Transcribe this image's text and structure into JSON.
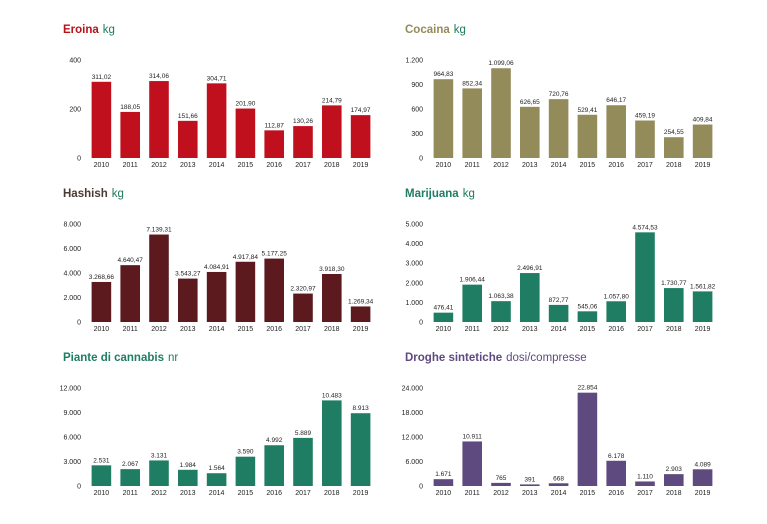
{
  "chart_data": [
    {
      "id": "eroina",
      "type": "bar",
      "title": "Eroina",
      "unit": "kg",
      "color": "#c0101e",
      "title_color": "#b5121b",
      "unit_color": "#1e7a5a",
      "categories": [
        "2010",
        "2011",
        "2012",
        "2013",
        "2014",
        "2015",
        "2016",
        "2017",
        "2018",
        "2019"
      ],
      "values": [
        311.02,
        188.05,
        314.06,
        151.66,
        304.71,
        201.9,
        112.87,
        130.26,
        214.79,
        174.97
      ],
      "value_labels": [
        "311,02",
        "188,05",
        "314,06",
        "151,66",
        "304,71",
        "201,90",
        "112,87",
        "130,26",
        "214,79",
        "174,97"
      ],
      "yticks": [
        0,
        200,
        400
      ],
      "ytick_labels": [
        "0",
        "200",
        "400"
      ],
      "ylim": [
        0,
        400
      ]
    },
    {
      "id": "cocaina",
      "type": "bar",
      "title": "Cocaina",
      "unit": "kg",
      "color": "#948b5a",
      "title_color": "#948b5a",
      "unit_color": "#1e7a5a",
      "categories": [
        "2010",
        "2011",
        "2012",
        "2013",
        "2014",
        "2015",
        "2016",
        "2017",
        "2018",
        "2019"
      ],
      "values": [
        964.83,
        852.34,
        1099.06,
        626.65,
        720.76,
        529.41,
        646.17,
        459.19,
        254.55,
        409.84
      ],
      "value_labels": [
        "964,83",
        "852,34",
        "1.099,06",
        "626,65",
        "720,76",
        "529,41",
        "646,17",
        "459,19",
        "254,55",
        "409,84"
      ],
      "yticks": [
        0,
        300,
        600,
        900,
        1200
      ],
      "ytick_labels": [
        "0",
        "300",
        "600",
        "900",
        "1.200"
      ],
      "ylim": [
        0,
        1200
      ]
    },
    {
      "id": "hashish",
      "type": "bar",
      "title": "Hashish",
      "unit": "kg",
      "color": "#5c1a1f",
      "title_color": "#4a3a32",
      "unit_color": "#1e7a5a",
      "categories": [
        "2010",
        "2011",
        "2012",
        "2013",
        "2014",
        "2015",
        "2016",
        "2017",
        "2018",
        "2019"
      ],
      "values": [
        3268.66,
        4640.47,
        7139.31,
        3543.27,
        4084.91,
        4917.84,
        5177.25,
        2320.97,
        3918.3,
        1269.34
      ],
      "value_labels": [
        "3.268,66",
        "4.640,47",
        "7.139,31",
        "3.543,27",
        "4.084,91",
        "4.917,84",
        "5.177,25",
        "2.320,97",
        "3.918,30",
        "1.269,34"
      ],
      "yticks": [
        0,
        2000,
        4000,
        6000,
        8000
      ],
      "ytick_labels": [
        "0",
        "2.000",
        "4.000",
        "6.000",
        "8.000"
      ],
      "ylim": [
        0,
        8000
      ]
    },
    {
      "id": "marijuana",
      "type": "bar",
      "title": "Marijuana",
      "unit": "kg",
      "color": "#1f7d63",
      "title_color": "#1f7d63",
      "unit_color": "#1e7a5a",
      "categories": [
        "2010",
        "2011",
        "2012",
        "2013",
        "2014",
        "2015",
        "2016",
        "2017",
        "2018",
        "2019"
      ],
      "values": [
        476.41,
        1906.44,
        1063.38,
        2496.91,
        872.77,
        545.06,
        1057.8,
        4574.53,
        1730.77,
        1561.82
      ],
      "value_labels": [
        "476,41",
        "1.906,44",
        "1.063,38",
        "2.496,91",
        "872,77",
        "545,06",
        "1.057,80",
        "4.574,53",
        "1.730,77",
        "1.561,82"
      ],
      "yticks": [
        0,
        1000,
        2000,
        3000,
        4000,
        5000
      ],
      "ytick_labels": [
        "0",
        "1.000",
        "2.000",
        "3.000",
        "4.000",
        "5.000"
      ],
      "ylim": [
        0,
        5000
      ]
    },
    {
      "id": "cannabis",
      "type": "bar",
      "title": "Piante di cannabis",
      "unit": "nr",
      "color": "#1f7d63",
      "title_color": "#1f7d63",
      "unit_color": "#1e7a5a",
      "categories": [
        "2010",
        "2011",
        "2012",
        "2013",
        "2014",
        "2015",
        "2016",
        "2017",
        "2018",
        "2019"
      ],
      "values": [
        2531,
        2067,
        3131,
        1984,
        1564,
        3590,
        4992,
        5889,
        10483,
        8913
      ],
      "value_labels": [
        "2.531",
        "2.067",
        "3.131",
        "1.984",
        "1.564",
        "3.590",
        "4.992",
        "5.889",
        "10.483",
        "8.913"
      ],
      "yticks": [
        0,
        3000,
        6000,
        9000,
        12000
      ],
      "ytick_labels": [
        "0",
        "3.000",
        "6.000",
        "9.000",
        "12.000"
      ],
      "ylim": [
        0,
        12000
      ]
    },
    {
      "id": "sintetiche",
      "type": "bar",
      "title": "Droghe sintetiche",
      "unit": "dosi/compresse",
      "color": "#5e4a7e",
      "title_color": "#5e4a7e",
      "unit_color": "#5e4a7e",
      "categories": [
        "2010",
        "2011",
        "2012",
        "2013",
        "2014",
        "2015",
        "2016",
        "2017",
        "2018",
        "2019"
      ],
      "values": [
        1671,
        10911,
        765,
        391,
        668,
        22854,
        6178,
        1110,
        2903,
        4089
      ],
      "value_labels": [
        "1.671",
        "10.911",
        "765",
        "391",
        "668",
        "22.854",
        "6.178",
        "1.110",
        "2.903",
        "4.089"
      ],
      "yticks": [
        0,
        6000,
        12000,
        18000,
        24000
      ],
      "ytick_labels": [
        "0",
        "6.000",
        "12.000",
        "18.000",
        "24.000"
      ],
      "ylim": [
        0,
        24000
      ]
    }
  ]
}
